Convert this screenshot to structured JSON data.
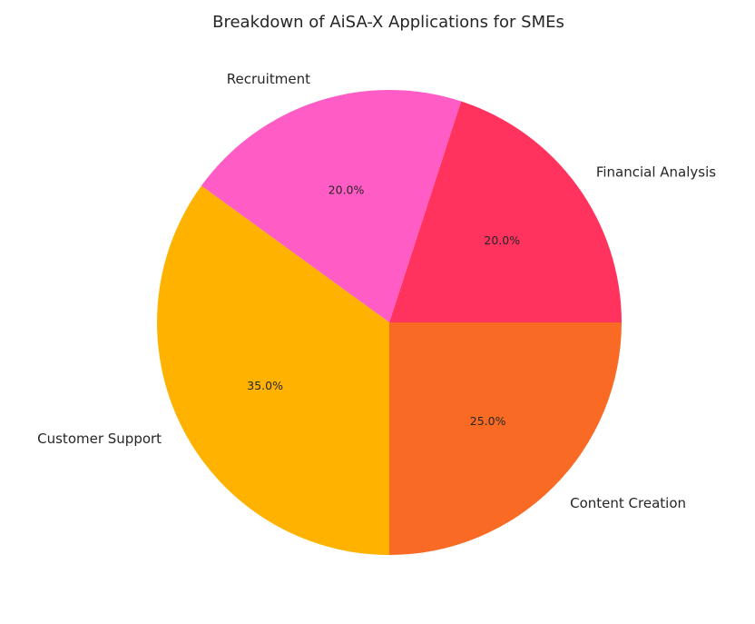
{
  "chart_data": {
    "type": "pie",
    "title": "Breakdown of AiSA-X Applications for SMEs",
    "start_angle_deg": 0,
    "direction": "counterclockwise",
    "slices": [
      {
        "label": "Financial Analysis",
        "value": 20,
        "pct_label": "20.0%",
        "color": "#FF335E"
      },
      {
        "label": "Recruitment",
        "value": 20,
        "pct_label": "20.0%",
        "color": "#FF5CC6"
      },
      {
        "label": "Customer Support",
        "value": 35,
        "pct_label": "35.0%",
        "color": "#FFB300"
      },
      {
        "label": "Content Creation",
        "value": 25,
        "pct_label": "25.0%",
        "color": "#F96B24"
      }
    ]
  }
}
